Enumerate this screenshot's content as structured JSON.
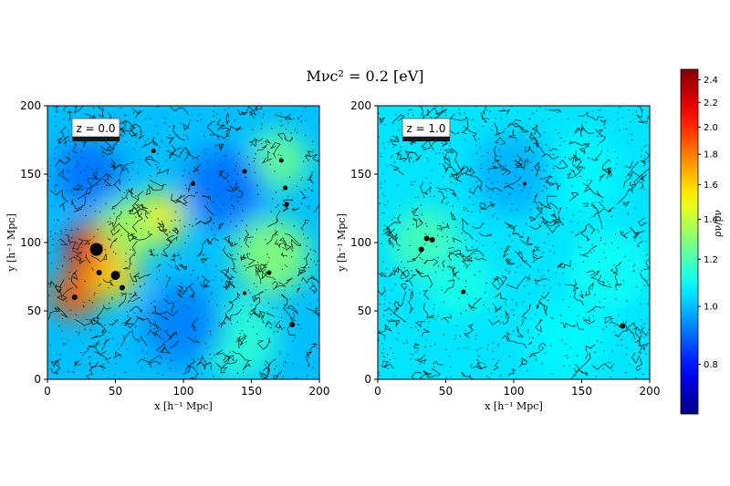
{
  "figure": {
    "suptitle": "Mνc² = 0.2 [eV]"
  },
  "chart_data": [
    {
      "type": "heatmap",
      "panel_label": "z = 0.0",
      "xlabel": "x [h⁻¹ Mpc]",
      "ylabel": "y [h⁻¹ Mpc]",
      "xlim": [
        0,
        200
      ],
      "ylim": [
        0,
        200
      ],
      "xticks": [
        0,
        50,
        100,
        150,
        200
      ],
      "yticks": [
        0,
        50,
        100,
        150,
        200
      ],
      "density_blobs": [
        {
          "x": 35,
          "y": 95,
          "r": 22,
          "value": 2.1
        },
        {
          "x": 20,
          "y": 62,
          "r": 18,
          "value": 1.9
        },
        {
          "x": 50,
          "y": 75,
          "r": 18,
          "value": 1.6
        },
        {
          "x": 82,
          "y": 118,
          "r": 20,
          "value": 1.55
        },
        {
          "x": 60,
          "y": 110,
          "r": 22,
          "value": 1.35
        },
        {
          "x": 165,
          "y": 90,
          "r": 28,
          "value": 1.3
        },
        {
          "x": 170,
          "y": 160,
          "r": 22,
          "value": 1.25
        },
        {
          "x": 140,
          "y": 30,
          "r": 30,
          "value": 1.15
        },
        {
          "x": 30,
          "y": 150,
          "r": 25,
          "value": 0.9
        },
        {
          "x": 130,
          "y": 140,
          "r": 30,
          "value": 0.9
        },
        {
          "x": 100,
          "y": 40,
          "r": 30,
          "value": 0.92
        }
      ],
      "halos": [
        {
          "x": 36,
          "y": 95,
          "size": 7
        },
        {
          "x": 20,
          "y": 60,
          "size": 3
        },
        {
          "x": 38,
          "y": 78,
          "size": 3
        },
        {
          "x": 50,
          "y": 76,
          "size": 5
        },
        {
          "x": 55,
          "y": 67,
          "size": 3
        },
        {
          "x": 78,
          "y": 167,
          "size": 2.5
        },
        {
          "x": 107,
          "y": 143,
          "size": 2.5
        },
        {
          "x": 163,
          "y": 78,
          "size": 2.5
        },
        {
          "x": 175,
          "y": 140,
          "size": 2.5
        },
        {
          "x": 180,
          "y": 40,
          "size": 3
        },
        {
          "x": 145,
          "y": 152,
          "size": 2.5
        },
        {
          "x": 172,
          "y": 160,
          "size": 2.5
        },
        {
          "x": 176,
          "y": 128,
          "size": 2.5
        },
        {
          "x": 145,
          "y": 63,
          "size": 2
        }
      ]
    },
    {
      "type": "heatmap",
      "panel_label": "z = 1.0",
      "xlabel": "x [h⁻¹ Mpc]",
      "ylabel": "y [h⁻¹ Mpc]",
      "xlim": [
        0,
        200
      ],
      "ylim": [
        0,
        200
      ],
      "xticks": [
        0,
        50,
        100,
        150,
        200
      ],
      "yticks": [
        0,
        50,
        100,
        150,
        200
      ],
      "density_blobs": [
        {
          "x": 35,
          "y": 100,
          "r": 25,
          "value": 1.2
        },
        {
          "x": 60,
          "y": 70,
          "r": 25,
          "value": 1.12
        },
        {
          "x": 170,
          "y": 80,
          "r": 30,
          "value": 1.1
        },
        {
          "x": 150,
          "y": 150,
          "r": 30,
          "value": 1.08
        },
        {
          "x": 100,
          "y": 150,
          "r": 30,
          "value": 0.98
        },
        {
          "x": 140,
          "y": 30,
          "r": 30,
          "value": 1.08
        }
      ],
      "halos": [
        {
          "x": 36,
          "y": 103,
          "size": 3
        },
        {
          "x": 40,
          "y": 102,
          "size": 3
        },
        {
          "x": 32,
          "y": 95,
          "size": 3
        },
        {
          "x": 63,
          "y": 64,
          "size": 2.5
        },
        {
          "x": 180,
          "y": 39,
          "size": 3
        },
        {
          "x": 108,
          "y": 143,
          "size": 2
        }
      ]
    }
  ],
  "colorbar": {
    "label": "ρν/ρ̄ν",
    "scale": "log",
    "vmin": 0.66,
    "vmax": 2.5,
    "ticks": [
      0.8,
      1.0,
      1.2,
      1.4,
      1.6,
      1.8,
      2.0,
      2.2,
      2.4
    ],
    "tick_labels": [
      "0.8",
      "1.0",
      "1.2",
      "1.4",
      "1.6",
      "1.8",
      "2.0",
      "2.2",
      "2.4"
    ],
    "colormap": "jet"
  }
}
